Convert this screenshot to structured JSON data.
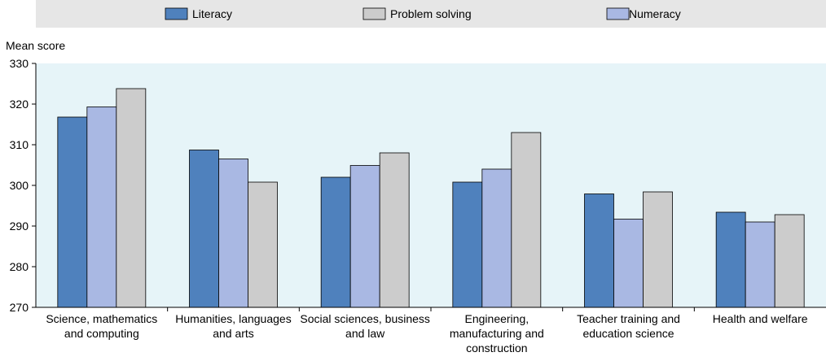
{
  "chart_data": {
    "type": "bar",
    "ylabel": "Mean score",
    "ylim": [
      270,
      330
    ],
    "yticks": [
      270,
      280,
      290,
      300,
      310,
      320,
      330
    ],
    "legend_position": "top",
    "grid": false,
    "categories": [
      [
        "Science, mathematics",
        "and computing"
      ],
      [
        "Humanities, languages",
        "and arts"
      ],
      [
        "Social sciences, business",
        "and law"
      ],
      [
        "Engineering,",
        "manufacturing and",
        "construction"
      ],
      [
        "Teacher training and",
        "education science"
      ],
      [
        "Health and welfare"
      ]
    ],
    "series": [
      {
        "name": "Literacy",
        "color": "#4f81bd",
        "values": [
          316.8,
          308.7,
          302.0,
          300.8,
          297.9,
          293.4
        ]
      },
      {
        "name": "Numeracy",
        "color": "#a9b8e3",
        "values": [
          319.3,
          306.5,
          304.9,
          304.0,
          291.7,
          291.0
        ]
      },
      {
        "name": "Problem solving",
        "color": "#cccccc",
        "values": [
          323.8,
          300.8,
          308.0,
          313.0,
          298.4,
          292.8
        ]
      }
    ],
    "legend": [
      {
        "name": "Literacy",
        "color": "#4f81bd"
      },
      {
        "name": "Problem solving",
        "color": "#cccccc"
      },
      {
        "name": "Numeracy",
        "color": "#a9b8e3"
      }
    ]
  }
}
